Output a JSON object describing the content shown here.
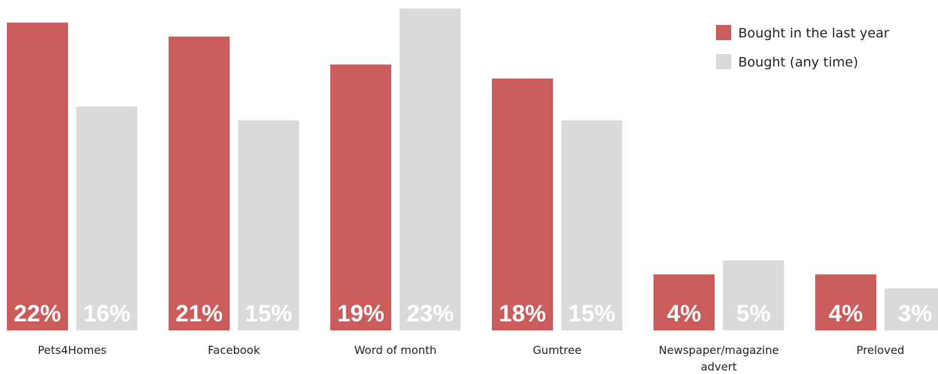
{
  "chart_data": {
    "type": "bar",
    "title": "",
    "xlabel": "",
    "ylabel": "",
    "ylim": [
      0,
      24
    ],
    "grid": false,
    "legend_position": "top-right",
    "categories": [
      [
        "Pets4Homes"
      ],
      [
        "Facebook"
      ],
      [
        "Word of month"
      ],
      [
        "Gumtree"
      ],
      [
        "Newspaper/magazine",
        "advert"
      ],
      [
        "Preloved"
      ]
    ],
    "series": [
      {
        "name": "Bought in the last year",
        "color": "#cb5c5c",
        "values": [
          22,
          21,
          19,
          18,
          4,
          4
        ]
      },
      {
        "name": "Bought (any time)",
        "color": "#dadada",
        "values": [
          16,
          15,
          23,
          15,
          5,
          3
        ]
      }
    ],
    "value_suffix": "%"
  }
}
